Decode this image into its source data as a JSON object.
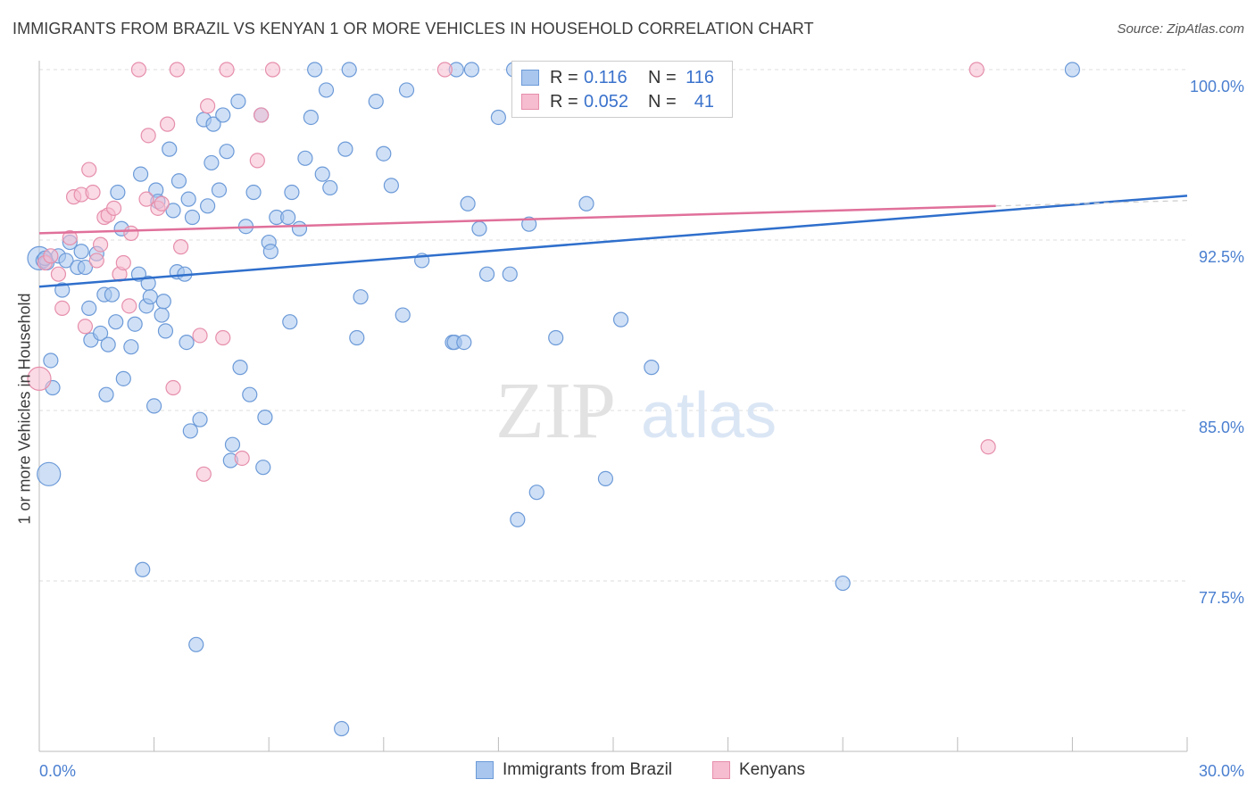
{
  "title": "IMMIGRANTS FROM BRAZIL VS KENYAN 1 OR MORE VEHICLES IN HOUSEHOLD CORRELATION CHART",
  "source": "Source: ZipAtlas.com",
  "watermark": {
    "zip": "ZIP",
    "atlas": "atlas"
  },
  "colors": {
    "blue_fill": "#a8c6ee",
    "blue_stroke": "#6c9ad8",
    "blue_line": "#2f6fcc",
    "pink_fill": "#f6bccf",
    "pink_stroke": "#e68fab",
    "pink_line": "#e0709a",
    "tick_text": "#4a7fd0",
    "grid": "#dddddd"
  },
  "legend_top": {
    "rows": [
      {
        "r_label": "R =",
        "r_value": "0.116",
        "n_label": "N =",
        "n_value": "116",
        "series": "blue"
      },
      {
        "r_label": "R =",
        "r_value": "0.052",
        "n_label": "N =",
        "n_value": "41",
        "series": "pink"
      }
    ]
  },
  "legend_bottom": [
    {
      "label": "Immigrants from Brazil",
      "series": "blue"
    },
    {
      "label": "Kenyans",
      "series": "pink"
    }
  ],
  "chart_data": {
    "type": "scatter",
    "title": "IMMIGRANTS FROM BRAZIL VS KENYAN 1 OR MORE VEHICLES IN HOUSEHOLD CORRELATION CHART",
    "xlabel": "",
    "ylabel": "1 or more Vehicles in Household",
    "xlim": [
      0,
      30
    ],
    "ylim": [
      70.5,
      100.9
    ],
    "x_tick_labels": [
      {
        "value": 0,
        "label": "0.0%"
      },
      {
        "value": 30,
        "label": "30.0%"
      }
    ],
    "y_tick_labels": [
      {
        "value": 100,
        "label": "100.0%"
      },
      {
        "value": 92.5,
        "label": "92.5%"
      },
      {
        "value": 85,
        "label": "85.0%"
      },
      {
        "value": 77.5,
        "label": "77.5%"
      }
    ],
    "grid": true,
    "legend_position": "top-center",
    "series": [
      {
        "name": "Immigrants from Brazil",
        "color": "blue",
        "trend": {
          "x": [
            0,
            30
          ],
          "y": [
            90.45,
            94.45
          ],
          "x_dashed_end": 30
        },
        "points": [
          {
            "x": 0.0,
            "y": 91.7,
            "big": true
          },
          {
            "x": 0.1,
            "y": 91.6
          },
          {
            "x": 0.2,
            "y": 91.5
          },
          {
            "x": 0.3,
            "y": 87.2
          },
          {
            "x": 0.35,
            "y": 86.0
          },
          {
            "x": 0.25,
            "y": 82.2,
            "big": true
          },
          {
            "x": 0.5,
            "y": 91.8
          },
          {
            "x": 0.6,
            "y": 90.3
          },
          {
            "x": 0.7,
            "y": 91.6
          },
          {
            "x": 0.8,
            "y": 92.4
          },
          {
            "x": 1.0,
            "y": 91.3
          },
          {
            "x": 1.1,
            "y": 92.0
          },
          {
            "x": 1.2,
            "y": 91.3
          },
          {
            "x": 1.3,
            "y": 89.5
          },
          {
            "x": 1.35,
            "y": 88.1
          },
          {
            "x": 1.5,
            "y": 91.9
          },
          {
            "x": 1.6,
            "y": 88.4
          },
          {
            "x": 1.7,
            "y": 90.1
          },
          {
            "x": 1.75,
            "y": 85.7
          },
          {
            "x": 1.8,
            "y": 87.9
          },
          {
            "x": 1.9,
            "y": 90.1
          },
          {
            "x": 2.0,
            "y": 88.9
          },
          {
            "x": 2.05,
            "y": 94.6
          },
          {
            "x": 2.15,
            "y": 93.0
          },
          {
            "x": 2.2,
            "y": 86.4
          },
          {
            "x": 2.4,
            "y": 87.8
          },
          {
            "x": 2.5,
            "y": 88.8
          },
          {
            "x": 2.6,
            "y": 91.0
          },
          {
            "x": 2.65,
            "y": 95.4
          },
          {
            "x": 2.7,
            "y": 78.0
          },
          {
            "x": 2.8,
            "y": 89.6
          },
          {
            "x": 2.85,
            "y": 90.6
          },
          {
            "x": 2.9,
            "y": 90.0
          },
          {
            "x": 3.0,
            "y": 85.2
          },
          {
            "x": 3.05,
            "y": 94.7
          },
          {
            "x": 3.1,
            "y": 94.2
          },
          {
            "x": 3.2,
            "y": 89.2
          },
          {
            "x": 3.25,
            "y": 89.8
          },
          {
            "x": 3.3,
            "y": 88.5
          },
          {
            "x": 3.4,
            "y": 96.5
          },
          {
            "x": 3.5,
            "y": 93.8
          },
          {
            "x": 3.6,
            "y": 91.1
          },
          {
            "x": 3.65,
            "y": 95.1
          },
          {
            "x": 3.8,
            "y": 91.0
          },
          {
            "x": 3.85,
            "y": 88.0
          },
          {
            "x": 3.9,
            "y": 94.3
          },
          {
            "x": 3.95,
            "y": 84.1
          },
          {
            "x": 4.0,
            "y": 93.5
          },
          {
            "x": 4.1,
            "y": 74.7
          },
          {
            "x": 4.2,
            "y": 84.6
          },
          {
            "x": 4.3,
            "y": 97.8
          },
          {
            "x": 4.4,
            "y": 94.0
          },
          {
            "x": 4.5,
            "y": 95.9
          },
          {
            "x": 4.55,
            "y": 97.6
          },
          {
            "x": 4.7,
            "y": 94.7
          },
          {
            "x": 4.8,
            "y": 98.0
          },
          {
            "x": 4.9,
            "y": 96.4
          },
          {
            "x": 5.0,
            "y": 82.8
          },
          {
            "x": 5.05,
            "y": 83.5
          },
          {
            "x": 5.2,
            "y": 98.6
          },
          {
            "x": 5.25,
            "y": 86.9
          },
          {
            "x": 5.4,
            "y": 93.1
          },
          {
            "x": 5.5,
            "y": 85.7
          },
          {
            "x": 5.6,
            "y": 94.6
          },
          {
            "x": 5.8,
            "y": 98.0
          },
          {
            "x": 5.85,
            "y": 82.5
          },
          {
            "x": 5.9,
            "y": 84.7
          },
          {
            "x": 6.0,
            "y": 92.4
          },
          {
            "x": 6.05,
            "y": 92.0
          },
          {
            "x": 6.2,
            "y": 93.5
          },
          {
            "x": 6.5,
            "y": 93.5
          },
          {
            "x": 6.55,
            "y": 88.9
          },
          {
            "x": 6.6,
            "y": 94.6
          },
          {
            "x": 6.8,
            "y": 93.0
          },
          {
            "x": 6.95,
            "y": 96.1
          },
          {
            "x": 7.1,
            "y": 97.9
          },
          {
            "x": 7.2,
            "y": 100.0
          },
          {
            "x": 7.4,
            "y": 95.4
          },
          {
            "x": 7.5,
            "y": 99.1
          },
          {
            "x": 7.6,
            "y": 94.8
          },
          {
            "x": 7.9,
            "y": 71.0
          },
          {
            "x": 8.0,
            "y": 96.5
          },
          {
            "x": 8.1,
            "y": 100.0
          },
          {
            "x": 8.3,
            "y": 88.2
          },
          {
            "x": 8.4,
            "y": 90.0
          },
          {
            "x": 8.8,
            "y": 98.6
          },
          {
            "x": 9.0,
            "y": 96.3
          },
          {
            "x": 9.2,
            "y": 94.9
          },
          {
            "x": 9.5,
            "y": 89.2
          },
          {
            "x": 9.6,
            "y": 99.1
          },
          {
            "x": 10.0,
            "y": 91.6
          },
          {
            "x": 10.8,
            "y": 88.0
          },
          {
            "x": 10.85,
            "y": 88.0
          },
          {
            "x": 10.9,
            "y": 100.0
          },
          {
            "x": 11.1,
            "y": 88.0
          },
          {
            "x": 11.2,
            "y": 94.1
          },
          {
            "x": 11.3,
            "y": 100.0
          },
          {
            "x": 11.5,
            "y": 93.0
          },
          {
            "x": 11.7,
            "y": 91.0
          },
          {
            "x": 12.0,
            "y": 97.9
          },
          {
            "x": 12.3,
            "y": 91.0
          },
          {
            "x": 12.4,
            "y": 100.0
          },
          {
            "x": 12.5,
            "y": 80.2
          },
          {
            "x": 12.7,
            "y": 100.0
          },
          {
            "x": 12.8,
            "y": 93.2
          },
          {
            "x": 13.0,
            "y": 81.4
          },
          {
            "x": 13.5,
            "y": 88.2
          },
          {
            "x": 14.0,
            "y": 100.0
          },
          {
            "x": 14.3,
            "y": 94.1
          },
          {
            "x": 14.8,
            "y": 82.0
          },
          {
            "x": 15.2,
            "y": 89.0
          },
          {
            "x": 15.8,
            "y": 100.0
          },
          {
            "x": 16.0,
            "y": 86.9
          },
          {
            "x": 21.0,
            "y": 77.4
          },
          {
            "x": 27.0,
            "y": 100.0
          },
          {
            "x": 0.15,
            "y": 91.7
          }
        ]
      },
      {
        "name": "Kenyans",
        "color": "pink",
        "trend": {
          "x": [
            0,
            25.0
          ],
          "y": [
            92.8,
            94.0
          ],
          "x_dashed_end": 30
        },
        "points": [
          {
            "x": 0.0,
            "y": 86.4,
            "big": true
          },
          {
            "x": 0.15,
            "y": 91.5
          },
          {
            "x": 0.3,
            "y": 91.8
          },
          {
            "x": 0.5,
            "y": 91.0
          },
          {
            "x": 0.6,
            "y": 89.5
          },
          {
            "x": 0.8,
            "y": 92.6
          },
          {
            "x": 0.9,
            "y": 94.4
          },
          {
            "x": 1.1,
            "y": 94.5
          },
          {
            "x": 1.2,
            "y": 88.7
          },
          {
            "x": 1.3,
            "y": 95.6
          },
          {
            "x": 1.4,
            "y": 94.6
          },
          {
            "x": 1.5,
            "y": 91.6
          },
          {
            "x": 1.6,
            "y": 92.3
          },
          {
            "x": 1.7,
            "y": 93.5
          },
          {
            "x": 1.8,
            "y": 93.6
          },
          {
            "x": 1.95,
            "y": 93.9
          },
          {
            "x": 2.1,
            "y": 91.0
          },
          {
            "x": 2.2,
            "y": 91.5
          },
          {
            "x": 2.35,
            "y": 89.6
          },
          {
            "x": 2.4,
            "y": 92.8
          },
          {
            "x": 2.6,
            "y": 100.0
          },
          {
            "x": 2.8,
            "y": 94.3
          },
          {
            "x": 2.85,
            "y": 97.1
          },
          {
            "x": 3.1,
            "y": 93.9
          },
          {
            "x": 3.2,
            "y": 94.1
          },
          {
            "x": 3.35,
            "y": 97.6
          },
          {
            "x": 3.5,
            "y": 86.0
          },
          {
            "x": 3.6,
            "y": 100.0
          },
          {
            "x": 3.7,
            "y": 92.2
          },
          {
            "x": 4.2,
            "y": 88.3
          },
          {
            "x": 4.3,
            "y": 82.2
          },
          {
            "x": 4.4,
            "y": 98.4
          },
          {
            "x": 4.9,
            "y": 100.0
          },
          {
            "x": 4.8,
            "y": 88.2
          },
          {
            "x": 5.3,
            "y": 82.9
          },
          {
            "x": 5.7,
            "y": 96.0
          },
          {
            "x": 5.8,
            "y": 98.0
          },
          {
            "x": 6.1,
            "y": 100.0
          },
          {
            "x": 10.6,
            "y": 100.0
          },
          {
            "x": 24.5,
            "y": 100.0
          },
          {
            "x": 24.8,
            "y": 83.4
          }
        ]
      }
    ]
  }
}
